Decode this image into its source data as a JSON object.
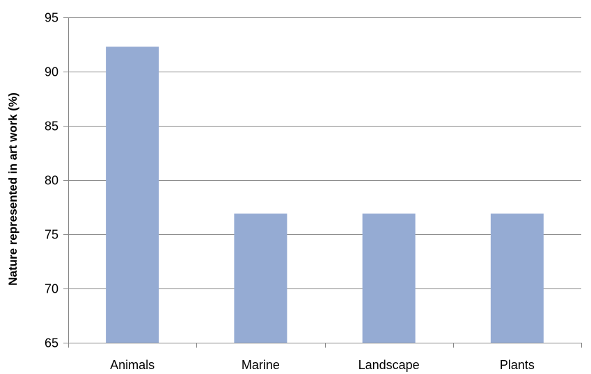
{
  "chart_data": {
    "type": "bar",
    "title": "",
    "xlabel": "",
    "ylabel": "Nature represented in art work (%)",
    "categories": [
      "Animals",
      "Marine",
      "Landscape",
      "Plants"
    ],
    "values": [
      92.3,
      76.9,
      76.9,
      76.9
    ],
    "ylim": [
      65,
      95
    ],
    "yticks": [
      65,
      70,
      75,
      80,
      85,
      90,
      95
    ],
    "grid": true,
    "legend": "none",
    "colors": {
      "bar": "#95abd3",
      "gridline": "#878787",
      "axis": "#878787"
    }
  }
}
